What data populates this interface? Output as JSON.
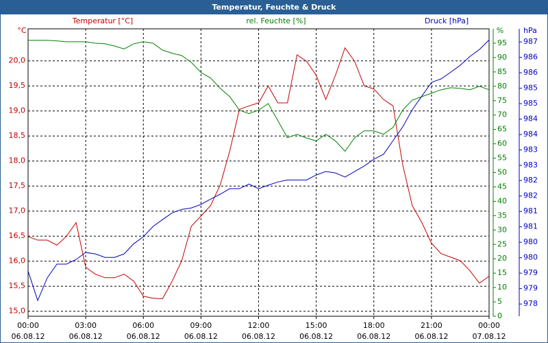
{
  "chart_data": {
    "type": "line",
    "title": "Temperatur, Feuchte & Druck",
    "xlim": [
      0,
      24
    ],
    "xticks": [
      {
        "value": 0,
        "label": "00:00",
        "date": "06.08.12"
      },
      {
        "value": 3,
        "label": "03:00",
        "date": "06.08.12"
      },
      {
        "value": 6,
        "label": "06:00",
        "date": "06.08.12"
      },
      {
        "value": 9,
        "label": "09:00",
        "date": "06.08.12"
      },
      {
        "value": 12,
        "label": "12:00",
        "date": "06.08.12"
      },
      {
        "value": 15,
        "label": "15:00",
        "date": "06.08.12"
      },
      {
        "value": 18,
        "label": "18:00",
        "date": "06.08.12"
      },
      {
        "value": 21,
        "label": "21:00",
        "date": "06.08.12"
      },
      {
        "value": 24,
        "label": "00:00",
        "date": "07.08.12"
      }
    ],
    "grid": true,
    "y_unit": "°C",
    "ylim": [
      14.9,
      20.64
    ],
    "yticks": [
      {
        "value": 15,
        "label": "15,0"
      },
      {
        "value": 15.5,
        "label": "15,5"
      },
      {
        "value": 16,
        "label": "16,0"
      },
      {
        "value": 16.5,
        "label": "16,5"
      },
      {
        "value": 17,
        "label": "17,0"
      },
      {
        "value": 17.5,
        "label": "17,5"
      },
      {
        "value": 18,
        "label": "18,0"
      },
      {
        "value": 18.5,
        "label": "18,5"
      },
      {
        "value": 19,
        "label": "19,0"
      },
      {
        "value": 19.5,
        "label": "19,5"
      },
      {
        "value": 20,
        "label": "20,0"
      }
    ],
    "y2_unit": "%",
    "y2lim": [
      0,
      100
    ],
    "y2ticks": [
      0,
      5,
      10,
      15,
      20,
      25,
      30,
      35,
      40,
      45,
      50,
      55,
      60,
      65,
      70,
      75,
      80,
      85,
      90,
      95
    ],
    "y3_unit": "hPa",
    "y3lim": [
      977.58,
      987.45
    ],
    "y3ticks": [
      {
        "value": 978.0,
        "label": "978"
      },
      {
        "value": 978.53,
        "label": "979"
      },
      {
        "value": 979.06,
        "label": "979"
      },
      {
        "value": 979.59,
        "label": "980"
      },
      {
        "value": 980.12,
        "label": "980"
      },
      {
        "value": 980.65,
        "label": "981"
      },
      {
        "value": 981.18,
        "label": "981"
      },
      {
        "value": 981.71,
        "label": "982"
      },
      {
        "value": 982.24,
        "label": "982"
      },
      {
        "value": 982.76,
        "label": "983"
      },
      {
        "value": 983.29,
        "label": "983"
      },
      {
        "value": 983.82,
        "label": "984"
      },
      {
        "value": 984.35,
        "label": "984"
      },
      {
        "value": 984.88,
        "label": "985"
      },
      {
        "value": 985.41,
        "label": "985"
      },
      {
        "value": 985.94,
        "label": "986"
      },
      {
        "value": 986.47,
        "label": "986"
      },
      {
        "value": 987.0,
        "label": "987"
      }
    ],
    "x": [
      0,
      0.5,
      1,
      1.5,
      2,
      2.5,
      3,
      3.5,
      4,
      4.5,
      5,
      5.5,
      6,
      6.5,
      7,
      7.5,
      8,
      8.5,
      9,
      9.5,
      10,
      10.5,
      11,
      11.5,
      12,
      12.5,
      13,
      13.5,
      14,
      14.5,
      15,
      15.5,
      16,
      16.5,
      17,
      17.5,
      18,
      18.5,
      19,
      19.5,
      20,
      20.5,
      21,
      21.5,
      22,
      22.5,
      23,
      23.5,
      24
    ],
    "series": [
      {
        "name": "Temperatur [°C]",
        "color": "#c00000",
        "axis": "y",
        "values": [
          16.49,
          16.42,
          16.42,
          16.32,
          16.5,
          16.77,
          15.88,
          15.74,
          15.67,
          15.67,
          15.74,
          15.6,
          15.3,
          15.26,
          15.25,
          15.6,
          16.01,
          16.7,
          16.9,
          17.11,
          17.52,
          18.2,
          19.03,
          19.1,
          19.16,
          19.5,
          19.16,
          19.16,
          20.12,
          19.99,
          19.71,
          19.23,
          19.71,
          20.26,
          19.99,
          19.5,
          19.44,
          19.23,
          19.1,
          17.93,
          17.11,
          16.77,
          16.36,
          16.15,
          16.08,
          16.01,
          15.81,
          15.56,
          15.7
        ]
      },
      {
        "name": "rel. Feuchte [%]",
        "color": "#008000",
        "axis": "y2",
        "values": [
          96,
          96,
          96,
          95.8,
          95.5,
          95.5,
          95.5,
          95,
          94.8,
          94,
          93,
          94.8,
          95.5,
          95,
          92.6,
          91.5,
          90.7,
          88.3,
          84.8,
          82.9,
          79.3,
          76.4,
          71.7,
          70.5,
          71.7,
          74,
          68.1,
          62.1,
          63.3,
          62,
          61,
          63.3,
          61,
          57.4,
          62.1,
          64.5,
          64.5,
          63.3,
          65.7,
          71.7,
          75.2,
          76.4,
          77.6,
          78.8,
          79.5,
          79.3,
          78.8,
          80,
          78.8
        ]
      },
      {
        "name": "Druck [hPa]",
        "color": "#0000c0",
        "axis": "y3",
        "values": [
          979.13,
          978.12,
          978.9,
          979.37,
          979.37,
          979.53,
          979.77,
          979.72,
          979.6,
          979.6,
          979.72,
          980.07,
          980.31,
          980.66,
          980.9,
          981.13,
          981.25,
          981.3,
          981.42,
          981.6,
          981.77,
          981.96,
          981.96,
          982.12,
          981.96,
          982.08,
          982.19,
          982.26,
          982.26,
          982.26,
          982.43,
          982.55,
          982.5,
          982.36,
          982.55,
          982.74,
          982.97,
          983.14,
          983.61,
          984.08,
          984.67,
          985.14,
          985.61,
          985.73,
          985.96,
          986.2,
          986.5,
          986.74,
          987.07
        ]
      }
    ]
  }
}
